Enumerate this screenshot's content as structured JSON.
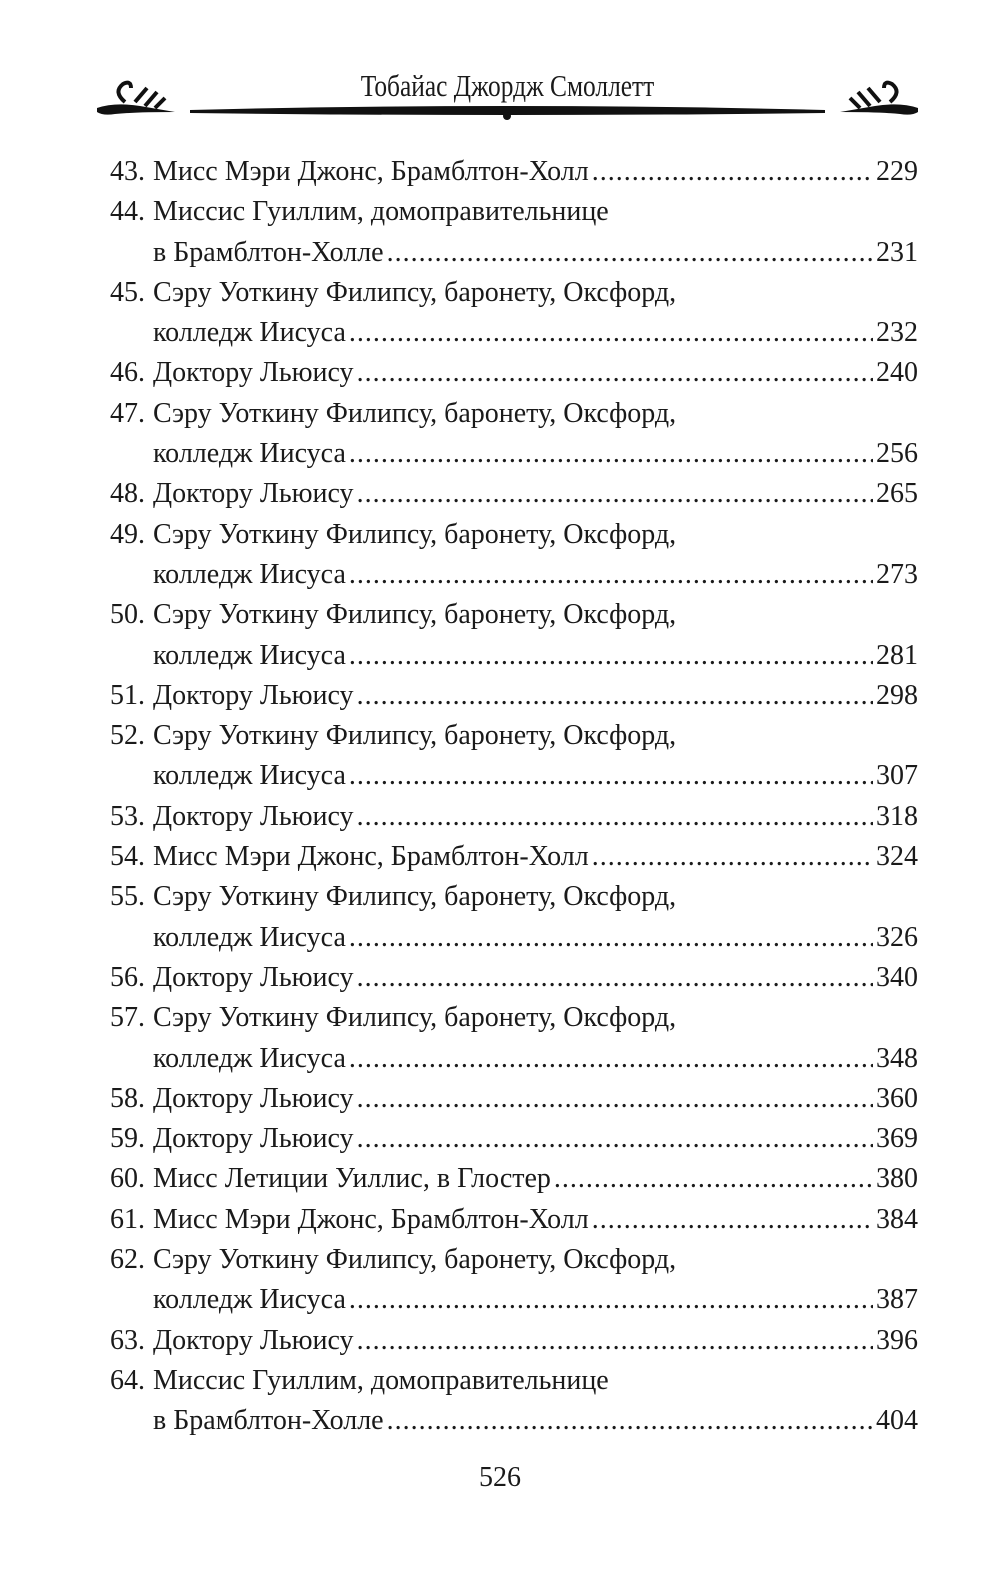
{
  "header": {
    "title": "Тобайас Джордж Смоллетт"
  },
  "entries": [
    {
      "num": "43.",
      "lines": [
        "Мисс Мэри Джонс, Брамблтон-Холл"
      ],
      "page": "229"
    },
    {
      "num": "44.",
      "lines": [
        "Миссис Гуиллим, домоправительнице",
        "в Брамблтон-Холле"
      ],
      "page": "231"
    },
    {
      "num": "45.",
      "lines": [
        "Сэру Уоткину Филипсу, баронету, Оксфорд,",
        "колледж Иисуса"
      ],
      "page": "232"
    },
    {
      "num": "46.",
      "lines": [
        "Доктору Льюису"
      ],
      "page": "240"
    },
    {
      "num": "47.",
      "lines": [
        "Сэру Уоткину Филипсу, баронету, Оксфорд,",
        "колледж Иисуса"
      ],
      "page": "256"
    },
    {
      "num": "48.",
      "lines": [
        "Доктору Льюису"
      ],
      "page": "265"
    },
    {
      "num": "49.",
      "lines": [
        "Сэру Уоткину Филипсу, баронету, Оксфорд,",
        "колледж Иисуса"
      ],
      "page": "273"
    },
    {
      "num": "50.",
      "lines": [
        "Сэру Уоткину Филипсу, баронету, Оксфорд,",
        "колледж Иисуса"
      ],
      "page": "281"
    },
    {
      "num": "51.",
      "lines": [
        "Доктору Льюису"
      ],
      "page": "298"
    },
    {
      "num": "52.",
      "lines": [
        "Сэру Уоткину Филипсу, баронету, Оксфорд,",
        "колледж Иисуса"
      ],
      "page": "307"
    },
    {
      "num": "53.",
      "lines": [
        "Доктору Льюису"
      ],
      "page": "318"
    },
    {
      "num": "54.",
      "lines": [
        "Мисс Мэри Джонс, Брамблтон-Холл"
      ],
      "page": "324"
    },
    {
      "num": "55.",
      "lines": [
        "Сэру Уоткину Филипсу, баронету, Оксфорд,",
        "колледж Иисуса"
      ],
      "page": "326"
    },
    {
      "num": "56.",
      "lines": [
        "Доктору Льюису"
      ],
      "page": "340"
    },
    {
      "num": "57.",
      "lines": [
        "Сэру Уоткину Филипсу, баронету, Оксфорд,",
        "колледж Иисуса"
      ],
      "page": "348"
    },
    {
      "num": "58.",
      "lines": [
        "Доктору Льюису"
      ],
      "page": "360"
    },
    {
      "num": "59.",
      "lines": [
        "Доктору Льюису"
      ],
      "page": "369"
    },
    {
      "num": "60.",
      "lines": [
        "Мисс Летиции Уиллис, в Глостер"
      ],
      "page": "380"
    },
    {
      "num": "61.",
      "lines": [
        "Мисс Мэри Джонс, Брамблтон-Холл"
      ],
      "page": "384"
    },
    {
      "num": "62.",
      "lines": [
        "Сэру Уоткину Филипсу, баронету, Оксфорд,",
        "колледж Иисуса"
      ],
      "page": "387"
    },
    {
      "num": "63.",
      "lines": [
        "Доктору Льюису"
      ],
      "page": "396"
    },
    {
      "num": "64.",
      "lines": [
        "Миссис Гуиллим, домоправительнице",
        "в Брамблтон-Холле"
      ],
      "page": "404"
    }
  ],
  "folio": "526"
}
